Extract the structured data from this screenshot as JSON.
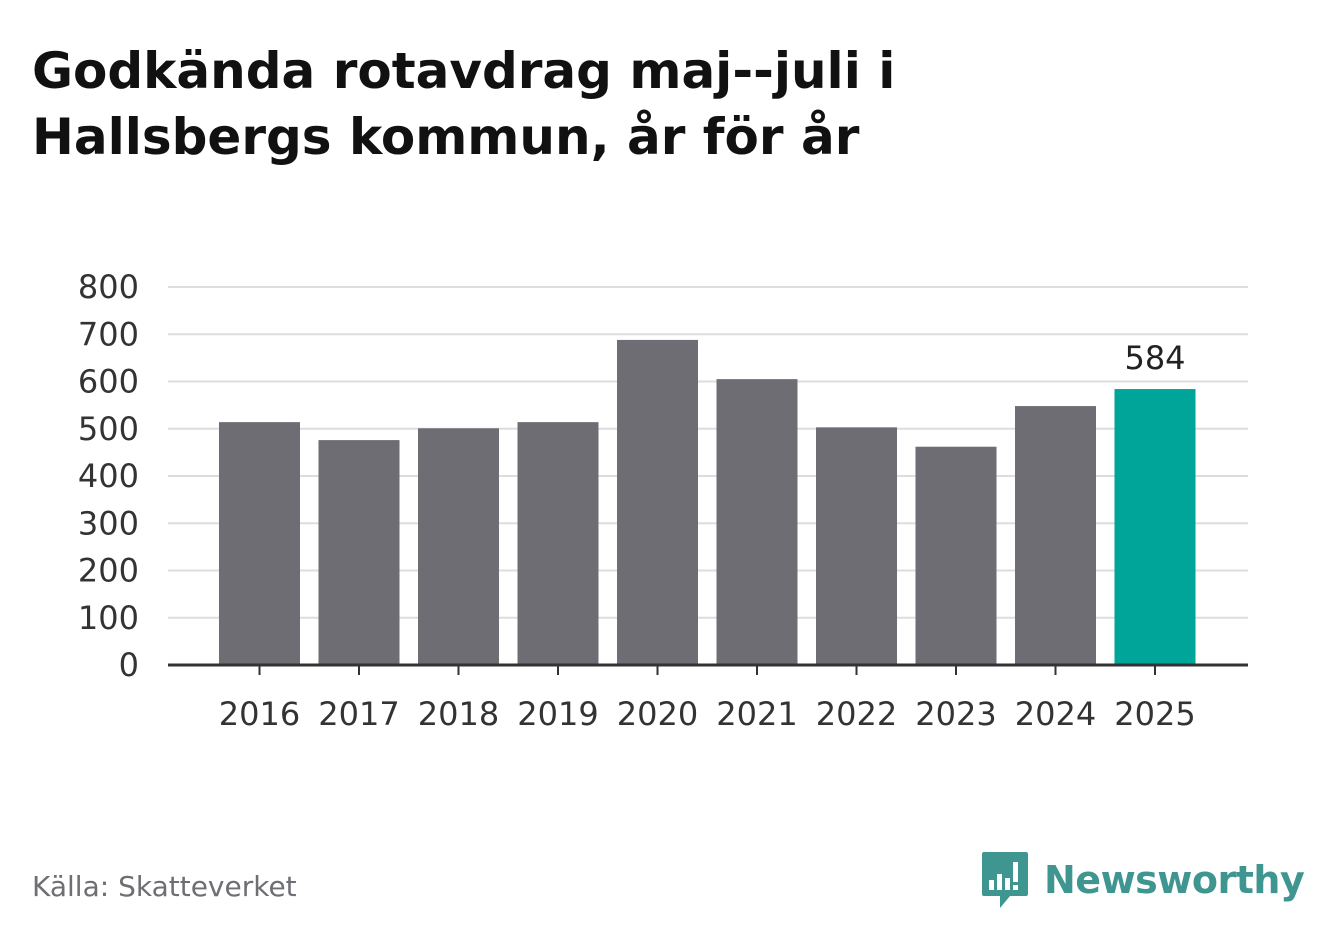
{
  "title": {
    "line1": "Godkända rotavdrag maj--juli i",
    "line2": "Hallsbergs kommun, år för år"
  },
  "source": "Källa: Skatteverket",
  "brand": {
    "name": "Newsworthy",
    "icon": "newsworthy-logo-icon",
    "color": "#3f9690"
  },
  "colors": {
    "bar": "#6e6d73",
    "highlight": "#00a599",
    "grid": "#dddddd",
    "axis": "#333333"
  },
  "chart_data": {
    "type": "bar",
    "categories": [
      "2016",
      "2017",
      "2018",
      "2019",
      "2020",
      "2021",
      "2022",
      "2023",
      "2024",
      "2025"
    ],
    "values": [
      514,
      476,
      501,
      514,
      688,
      605,
      503,
      462,
      548,
      584
    ],
    "highlight_index": 9,
    "data_labels": [
      {
        "index": 9,
        "text": "584"
      }
    ],
    "ylim": [
      0,
      800
    ],
    "yticks": [
      0,
      100,
      200,
      300,
      400,
      500,
      600,
      700,
      800
    ],
    "xlabel": "",
    "ylabel": "",
    "grid": true,
    "legend": "none"
  }
}
